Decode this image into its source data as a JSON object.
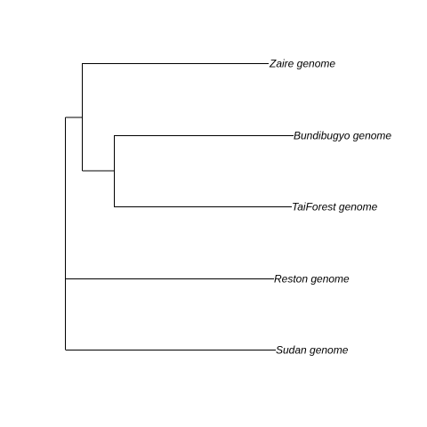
{
  "tree": {
    "layout": "rectangular",
    "line_color": "#000000",
    "label_color": "#000000",
    "label_style": "italic",
    "tips": [
      {
        "id": "zaire",
        "label": "Zaire genome"
      },
      {
        "id": "bundibugyo",
        "label": "Bundibugyo genome"
      },
      {
        "id": "taiforest",
        "label": "TaiForest genome"
      },
      {
        "id": "reston",
        "label": "Reston genome"
      },
      {
        "id": "sudan",
        "label": "Sudan genome"
      }
    ],
    "topology": "((Zaire genome,(Bundibugyo genome,TaiForest genome)),Reston genome,Sudan genome);"
  }
}
